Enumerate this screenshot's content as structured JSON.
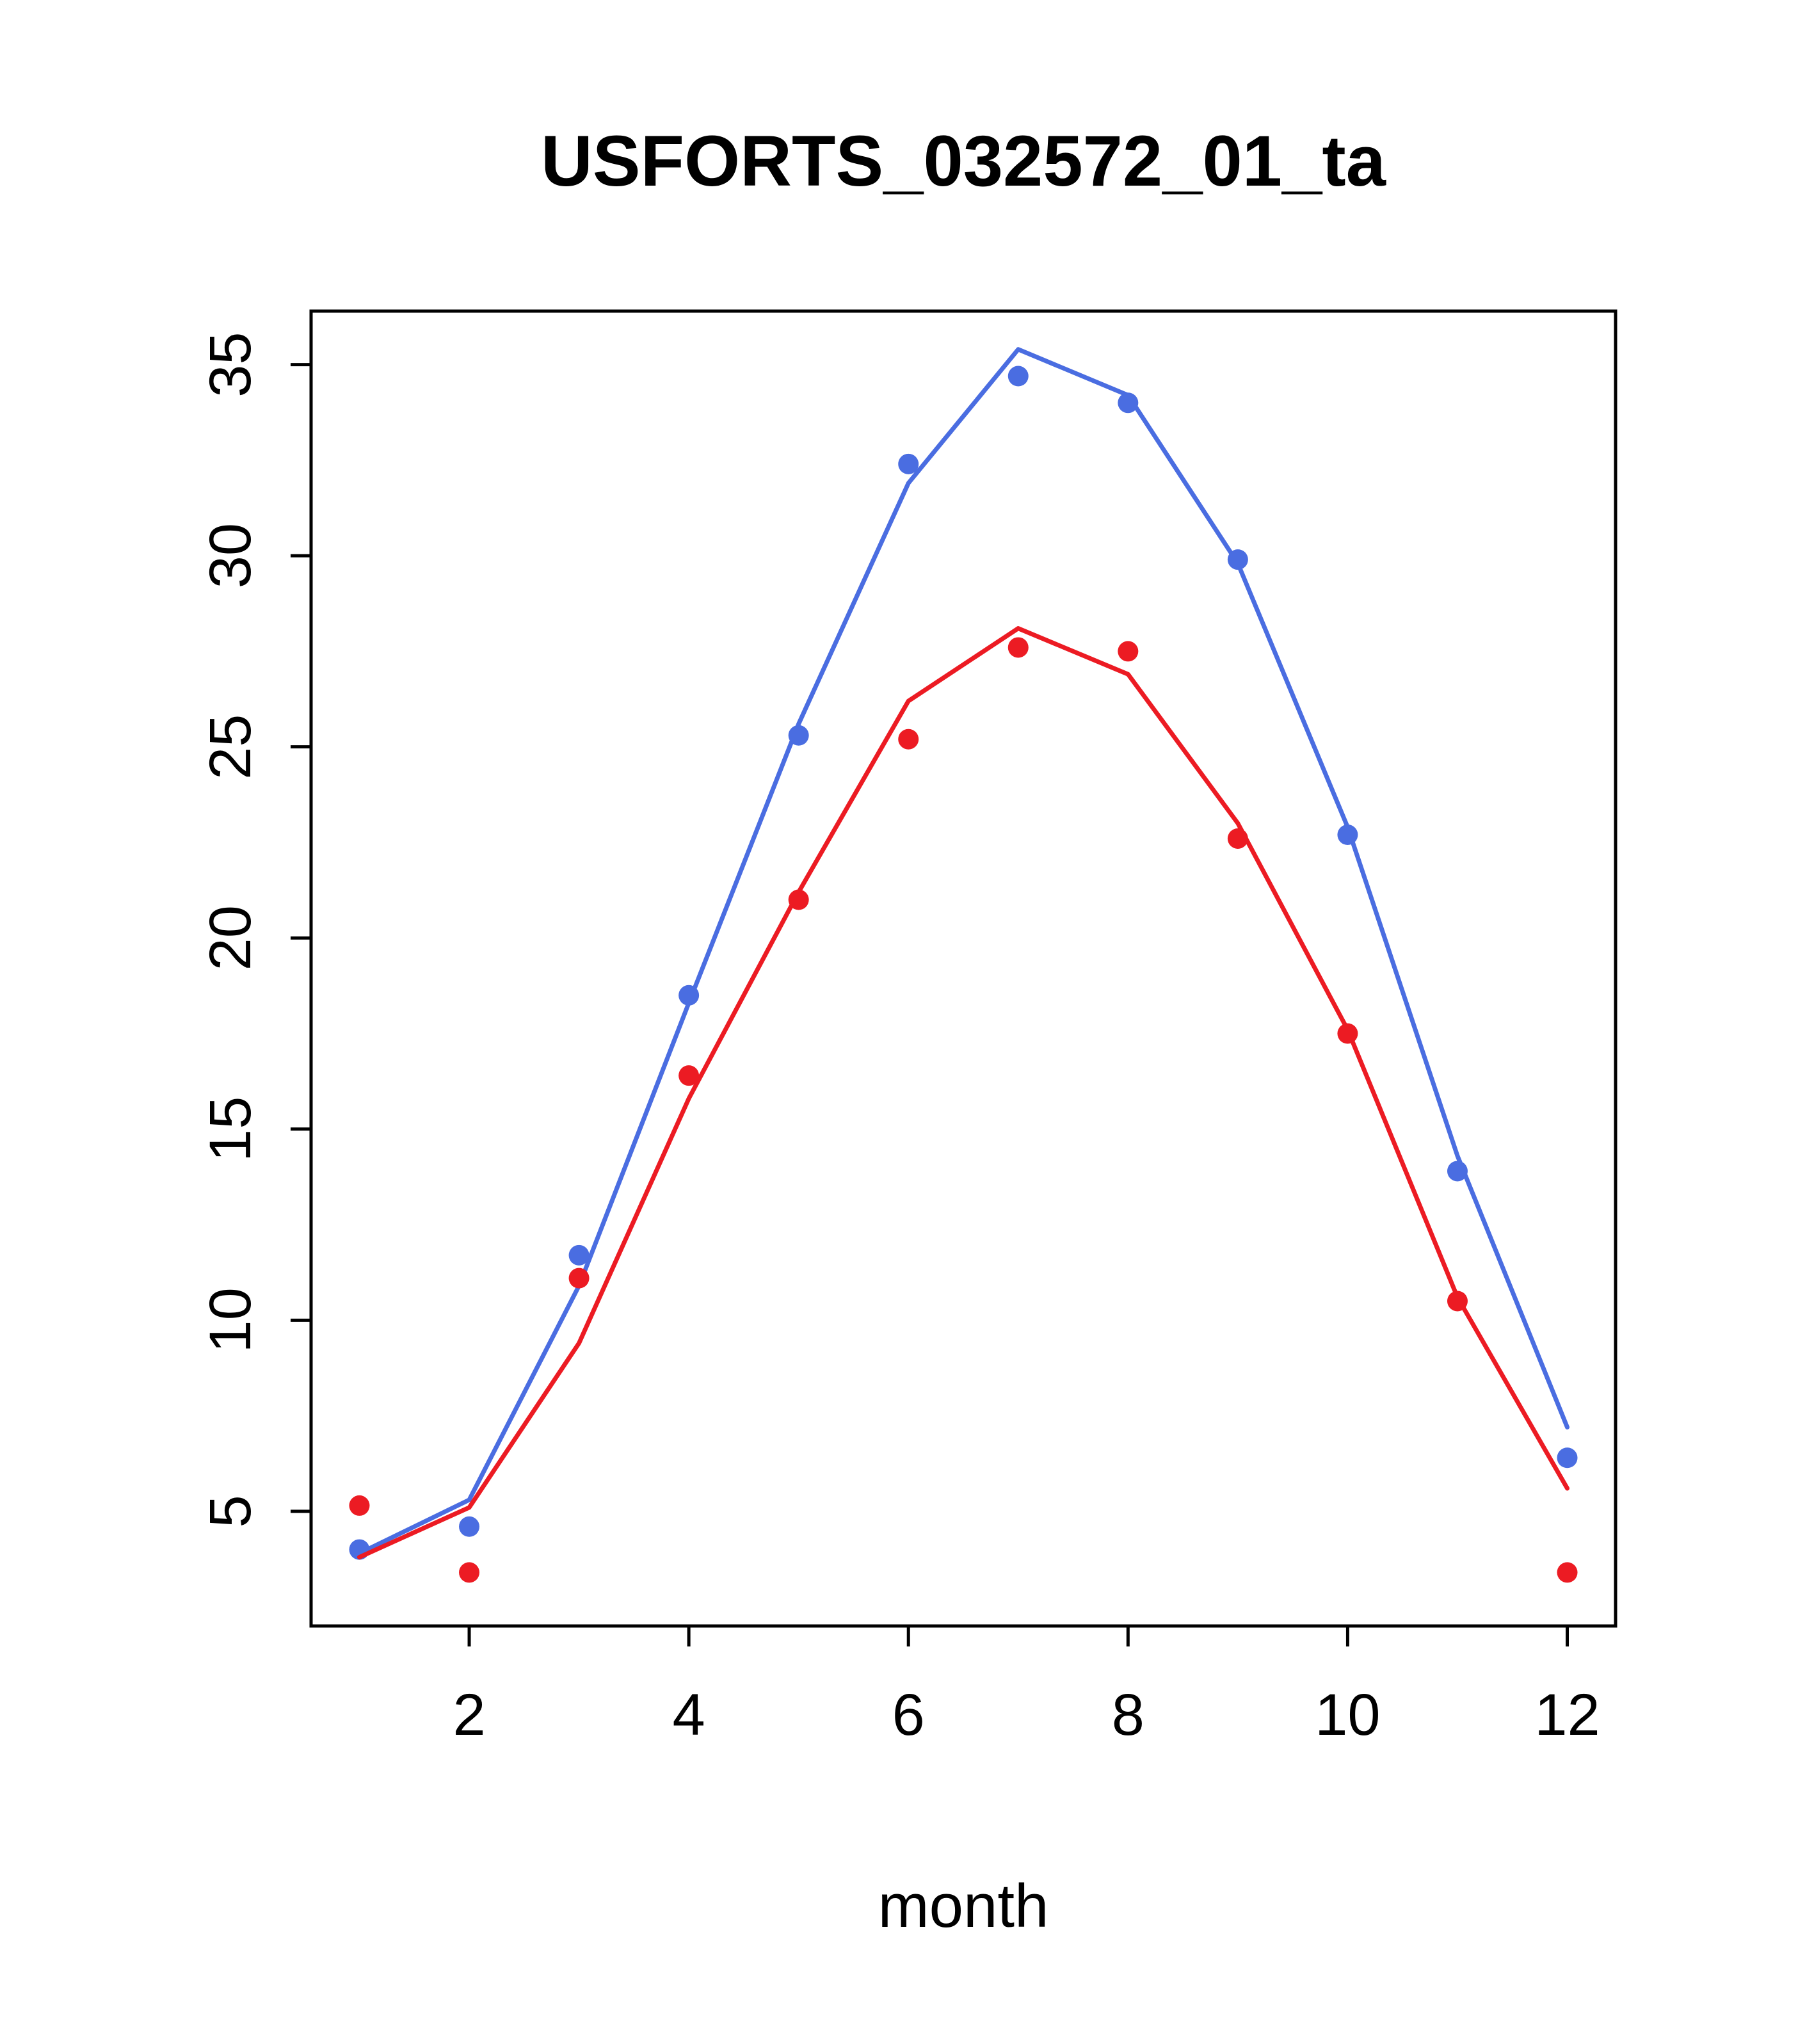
{
  "chart_data": {
    "type": "line",
    "title": "USFORTS_032572_01_ta",
    "xlabel": "month",
    "ylabel": "",
    "x": [
      1,
      2,
      3,
      4,
      5,
      6,
      7,
      8,
      9,
      10,
      11,
      12
    ],
    "xlim": [
      0.56,
      12.44
    ],
    "ylim": [
      2.0,
      36.4
    ],
    "xticks": [
      2,
      4,
      6,
      8,
      10,
      12
    ],
    "yticks": [
      5,
      10,
      15,
      20,
      25,
      30,
      35
    ],
    "grid": false,
    "legend": "none",
    "colors": {
      "blue": "#4a6de1",
      "red": "#ec1b23",
      "axis": "#000000"
    },
    "series": [
      {
        "name": "blue-fit-line",
        "kind": "line",
        "color": "#4a6de1",
        "values": [
          3.9,
          5.3,
          10.9,
          18.3,
          25.6,
          31.9,
          35.4,
          34.2,
          29.8,
          22.9,
          14.3,
          7.2
        ]
      },
      {
        "name": "blue-observed-points",
        "kind": "scatter",
        "color": "#4a6de1",
        "values": [
          4.0,
          4.6,
          11.7,
          18.5,
          25.3,
          32.4,
          34.7,
          34.0,
          29.9,
          22.7,
          13.9,
          6.4
        ]
      },
      {
        "name": "red-fit-line",
        "kind": "line",
        "color": "#ec1b23",
        "values": [
          3.8,
          5.1,
          9.4,
          15.8,
          21.2,
          26.2,
          28.1,
          26.9,
          23.0,
          17.6,
          10.6,
          5.6
        ]
      },
      {
        "name": "red-observed-points",
        "kind": "scatter",
        "color": "#ec1b23",
        "values": [
          5.15,
          3.4,
          11.1,
          16.4,
          21.0,
          25.2,
          27.6,
          27.5,
          22.6,
          17.5,
          10.5,
          3.4
        ]
      }
    ]
  }
}
